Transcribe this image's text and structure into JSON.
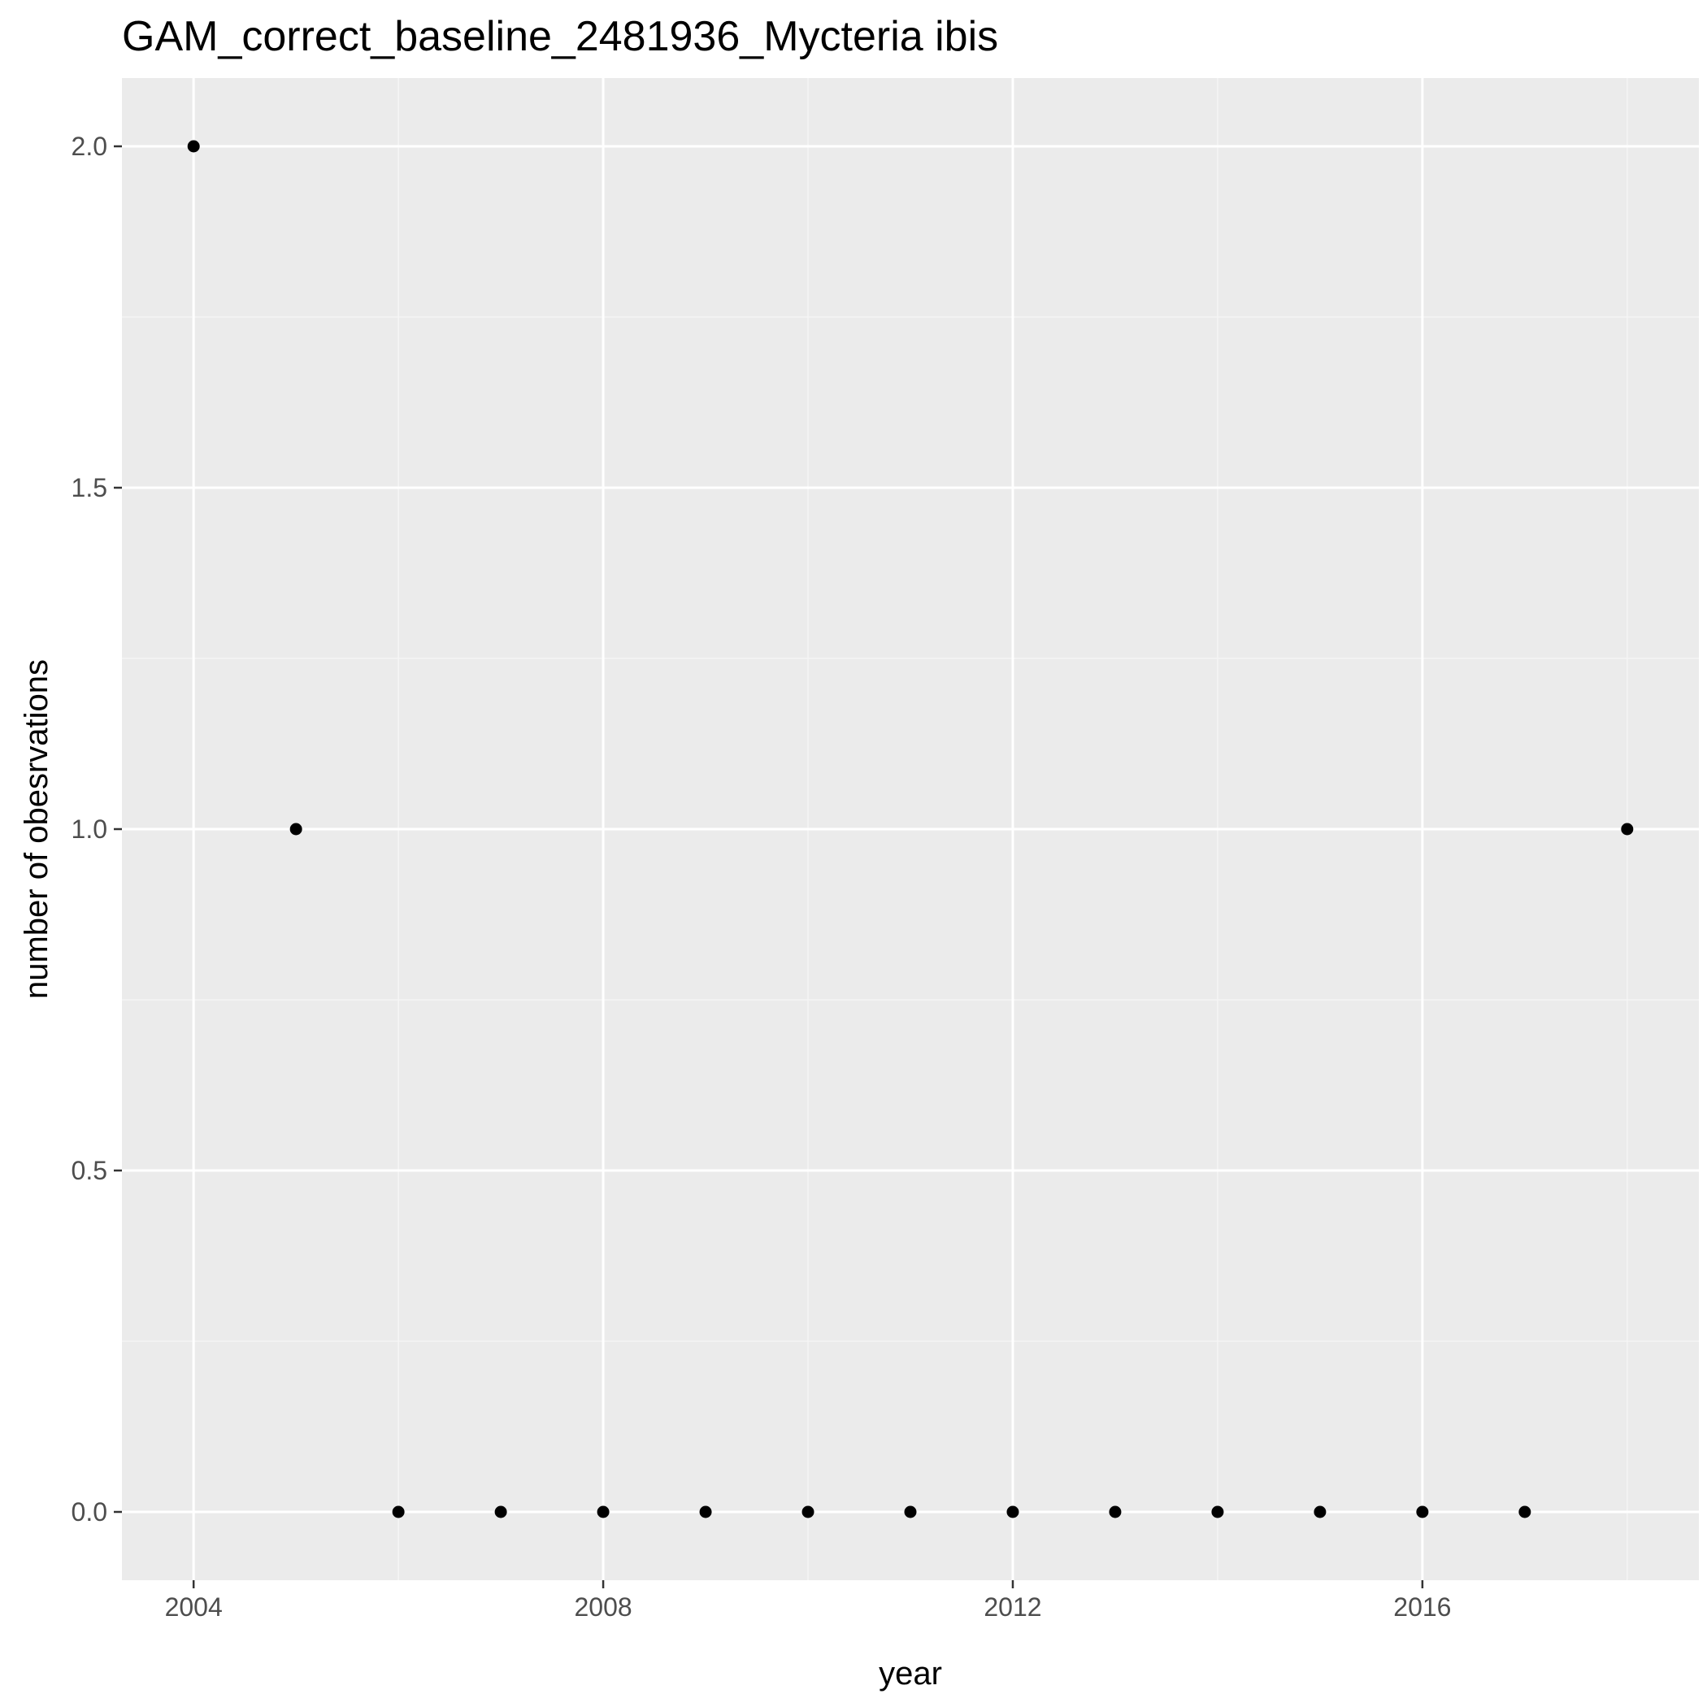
{
  "chart_data": {
    "type": "scatter",
    "title": "GAM_correct_baseline_2481936_Mycteria ibis",
    "xlabel": "year",
    "ylabel": "number of obesrvations",
    "xlim": [
      2003.3,
      2018.7
    ],
    "ylim": [
      -0.1,
      2.1
    ],
    "x_ticks": [
      2004,
      2008,
      2012,
      2016
    ],
    "x_tick_labels": [
      "2004",
      "2008",
      "2012",
      "2016"
    ],
    "y_ticks": [
      0,
      0.5,
      1,
      1.5,
      2
    ],
    "y_tick_labels": [
      "0.0",
      "0.5",
      "1.0",
      "1.5",
      "2.0"
    ],
    "grid": true,
    "x": [
      2004,
      2005,
      2006,
      2007,
      2008,
      2009,
      2010,
      2011,
      2012,
      2013,
      2014,
      2015,
      2016,
      2017,
      2018
    ],
    "y": [
      2,
      1,
      0,
      0,
      0,
      0,
      0,
      0,
      0,
      0,
      0,
      0,
      0,
      0,
      1
    ],
    "colors": {
      "panel_background": "#ebebeb",
      "grid_major": "#ffffff",
      "grid_minor": "#f5f5f5",
      "point": "#000000",
      "tick": "#333333"
    }
  }
}
